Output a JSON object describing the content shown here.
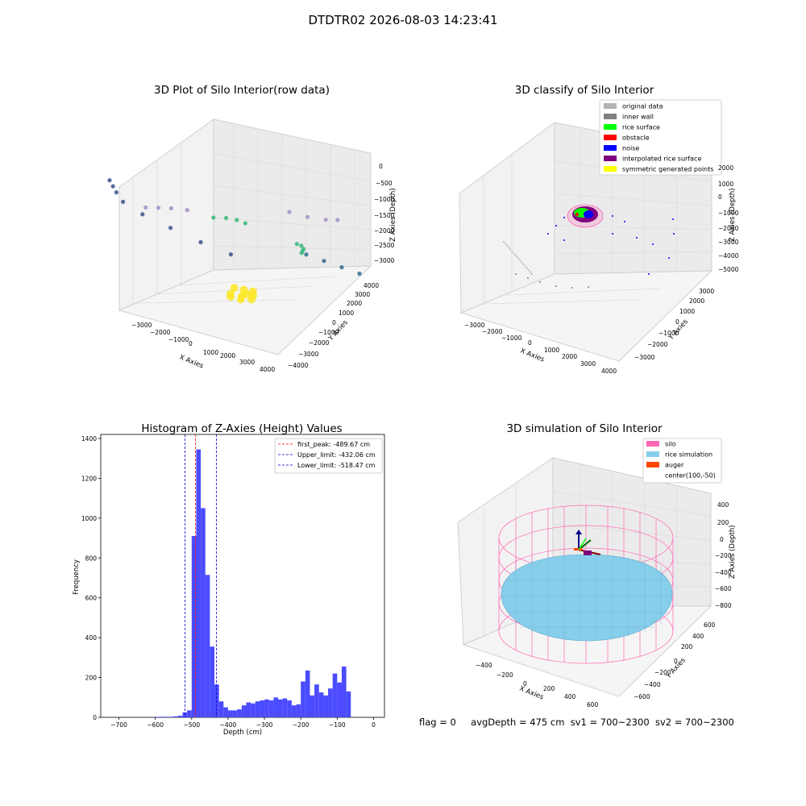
{
  "figure_title": "DTDTR02 2026-08-03 14:23:41",
  "status": {
    "flag": "flag = 0",
    "avg": "avgDepth = 475 cm",
    "sv1": "sv1 = 700~2300",
    "sv2": "sv2 = 700~2300"
  },
  "colors": {
    "hist_bar": "#4b4bff",
    "peak_line": "#ff0000",
    "limit_line": "#0000cc",
    "silo": "#ff69b4",
    "rice": "#87ceeb",
    "auger": "#ff4500"
  },
  "chart_data": [
    {
      "type": "scatter",
      "projection": "3d",
      "title": "3D Plot of Silo Interior(row data)",
      "xlabel": "X Axies",
      "ylabel": "Y Axies",
      "zlabel": "Z Axies (Depth)",
      "xticks": [
        "−3000",
        "−2000",
        "−1000",
        "0",
        "1000",
        "2000",
        "3000",
        "4000"
      ],
      "yticks": [
        "−4000",
        "−3000",
        "−2000",
        "−1000",
        "0",
        "1000",
        "2000",
        "3000",
        "4000"
      ],
      "zticks": [
        "0",
        "−500",
        "−1000",
        "−1500",
        "−2000",
        "−2500",
        "−3000"
      ],
      "colormap": "viridis",
      "series": [
        {
          "color": "#fde725",
          "x": [
            0,
            250,
            -250,
            150,
            -150,
            300,
            -300,
            100,
            -100,
            0
          ],
          "y": [
            0,
            150,
            -150,
            300,
            -300,
            0,
            100,
            -200,
            250,
            200
          ],
          "z": [
            -450,
            -480,
            -470,
            -500,
            -490,
            -460,
            -510,
            -470,
            -480,
            -430
          ]
        },
        {
          "color": "#35b779",
          "x": [
            -1400,
            -1200,
            -1000,
            -800,
            800,
            1000,
            1200,
            1300,
            1400
          ],
          "y": [
            800,
            1100,
            1300,
            1400,
            1400,
            1300,
            1100,
            900,
            700
          ],
          "z": [
            -1550,
            -1500,
            -1450,
            -1400,
            -1400,
            -1450,
            -1500,
            -1550,
            -1600
          ]
        },
        {
          "color": "#a58fc3",
          "x": [
            -2200,
            -2000,
            -1800,
            -1500,
            500,
            1000,
            1500,
            1800
          ],
          "y": [
            -1200,
            -900,
            -600,
            -300,
            1500,
            1600,
            1700,
            1800
          ],
          "z": [
            -2200,
            -2150,
            -2100,
            -2050,
            -2000,
            -2000,
            -2050,
            -2100
          ]
        },
        {
          "color": "#3b528b",
          "x": [
            -2800,
            -2500,
            -2200,
            -1800,
            -1000,
            0,
            1000,
            2000
          ],
          "y": [
            -2000,
            -2300,
            -2600,
            -2900,
            -3200,
            -3400,
            -3500,
            -3600
          ],
          "z": [
            -2900,
            -2950,
            -3000,
            -3000,
            -3050,
            -3100,
            -3100,
            -3150
          ]
        },
        {
          "color": "#31688e",
          "x": [
            3000,
            3100,
            3200,
            3300
          ],
          "y": [
            1000,
            0,
            -1000,
            -2000
          ],
          "z": [
            -1500,
            -2000,
            -2500,
            -3000
          ]
        }
      ]
    },
    {
      "type": "scatter",
      "projection": "3d",
      "title": "3D classify of Silo Interior",
      "xlabel": "X Axies",
      "ylabel": "Y Axies",
      "zlabel": "Z Axies (Depth)",
      "xticks": [
        "−3000",
        "−2000",
        "−1000",
        "0",
        "1000",
        "2000",
        "3000",
        "4000"
      ],
      "yticks": [
        "−3000",
        "−2000",
        "−1000",
        "0",
        "1000",
        "2000",
        "3000"
      ],
      "zticks": [
        "2000",
        "1000",
        "0",
        "−1000",
        "−2000",
        "−3000",
        "−4000",
        "−5000"
      ],
      "legend": [
        {
          "label": "original data",
          "color": "#b3b3b3"
        },
        {
          "label": "inner wall",
          "color": "#808080"
        },
        {
          "label": "rice surface",
          "color": "#00ff00"
        },
        {
          "label": "obstacle",
          "color": "#ff0000"
        },
        {
          "label": "noise",
          "color": "#0000ff"
        },
        {
          "label": "interpolated rice surface",
          "color": "#800080"
        },
        {
          "label": "symmetric generated points",
          "color": "#ffff00"
        }
      ],
      "legend_loc": "upper right"
    },
    {
      "type": "bar",
      "title": "Histogram of Z-Axies (Height) Values",
      "xlabel": "Depth (cm)",
      "ylabel": "Frequency",
      "xlim": [
        -750,
        30
      ],
      "ylim": [
        0,
        1420
      ],
      "xticks": [
        -700,
        -600,
        -500,
        -400,
        -300,
        -200,
        -100,
        0
      ],
      "yticks": [
        0,
        200,
        400,
        600,
        800,
        1000,
        1200,
        1400
      ],
      "tick_labels_x": [
        "−700",
        "−600",
        "−500",
        "−400",
        "−300",
        "−200",
        "−100",
        "0"
      ],
      "tick_labels_y": [
        "0",
        "200",
        "400",
        "600",
        "800",
        "1000",
        "1200",
        "1400"
      ],
      "bin_width": 12.5,
      "bins_start": [
        -600,
        -587.5,
        -575,
        -562.5,
        -550,
        -537.5,
        -525,
        -512.5,
        -500,
        -487.5,
        -475,
        -462.5,
        -450,
        -437.5,
        -425,
        -412.5,
        -400,
        -387.5,
        -375,
        -362.5,
        -350,
        -337.5,
        -325,
        -312.5,
        -300,
        -287.5,
        -275,
        -262.5,
        -250,
        -237.5,
        -225,
        -212.5,
        -200,
        -187.5,
        -175,
        -162.5,
        -150,
        -137.5,
        -125,
        -112.5,
        -100,
        -87.5,
        -75,
        -62.5,
        -50,
        -37.5,
        -25,
        -12.5
      ],
      "values": [
        3,
        3,
        3,
        3,
        5,
        8,
        25,
        35,
        910,
        1345,
        1050,
        715,
        355,
        165,
        80,
        50,
        35,
        35,
        40,
        60,
        75,
        70,
        80,
        85,
        90,
        85,
        100,
        90,
        95,
        85,
        60,
        65,
        180,
        235,
        110,
        165,
        125,
        110,
        145,
        220,
        175,
        255,
        130,
        0,
        0,
        0,
        0,
        0
      ],
      "vlines": [
        {
          "label": "first_peak: -489.67 cm",
          "x": -489.67,
          "color": "#ff0000"
        },
        {
          "label": "Upper_limit: -432.06 cm",
          "x": -432.06,
          "color": "#0000cc"
        },
        {
          "label": "Lower_limit: -518.47 cm",
          "x": -518.47,
          "color": "#0000cc"
        }
      ],
      "legend_loc": "upper right"
    },
    {
      "type": "surface",
      "projection": "3d",
      "title": "3D simulation of Silo Interior",
      "xlabel": "X Axies",
      "ylabel": "Y Axies",
      "zlabel": "Z Axies (Depth)",
      "xticks": [
        "−400",
        "−200",
        "0",
        "200",
        "400",
        "600"
      ],
      "yticks": [
        "−600",
        "−400",
        "−200",
        "0",
        "200",
        "400",
        "600"
      ],
      "zticks": [
        "400",
        "200",
        "0",
        "−200",
        "−400",
        "−600",
        "−800"
      ],
      "legend": [
        {
          "label": "silo",
          "color": "#ff69b4"
        },
        {
          "label": "rice simulation",
          "color": "#87ceeb"
        },
        {
          "label": "auger",
          "color": "#ff4500"
        },
        {
          "label": "center(100,-50)",
          "color": ""
        }
      ],
      "legend_loc": "upper right"
    }
  ]
}
